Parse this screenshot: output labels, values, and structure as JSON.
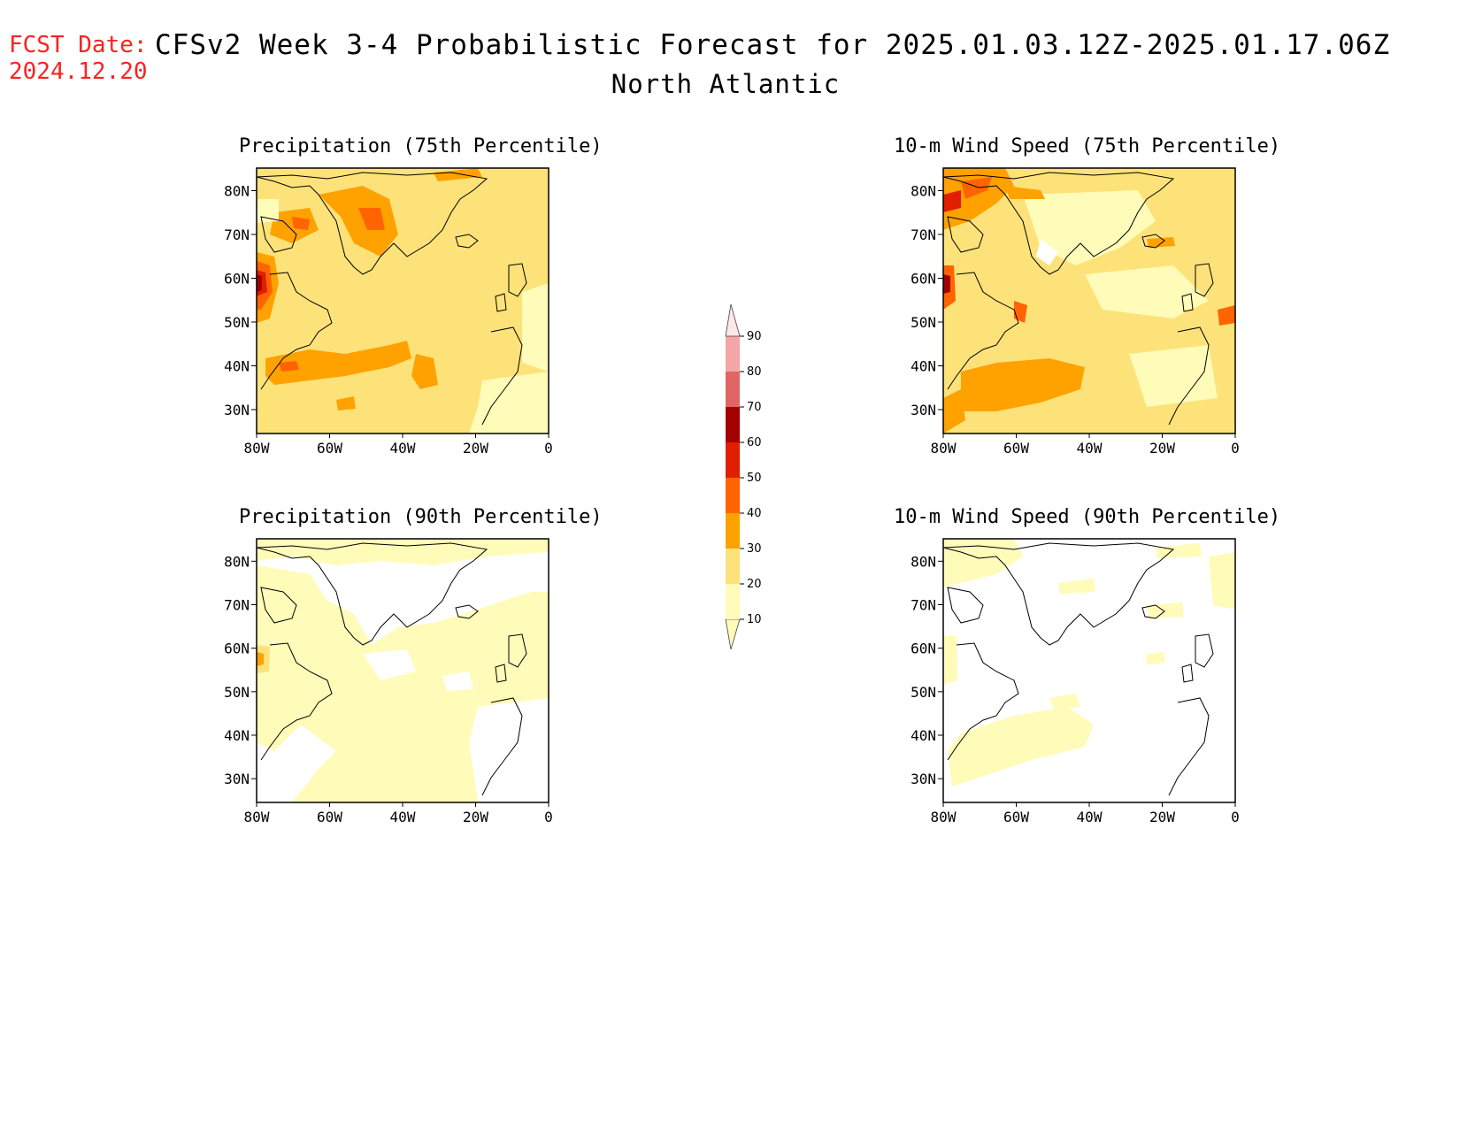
{
  "header": {
    "fcst_label": "FCST Date:",
    "fcst_date": "2024.12.20",
    "title": "CFSv2 Week 3-4 Probabilistic Forecast for 2025.01.03.12Z-2025.01.17.06Z",
    "region": "North Atlantic"
  },
  "panels": [
    {
      "id": "precip75",
      "title": "Precipitation (75th Percentile)"
    },
    {
      "id": "wind75",
      "title": "10-m Wind Speed (75th Percentile)"
    },
    {
      "id": "precip90",
      "title": "Precipitation (90th Percentile)"
    },
    {
      "id": "wind90",
      "title": "10-m Wind Speed (90th Percentile)"
    }
  ],
  "axes": {
    "lat_labels": [
      "80N",
      "70N",
      "60N",
      "50N",
      "40N",
      "30N"
    ],
    "lon_labels": [
      "80W",
      "60W",
      "40W",
      "20W",
      "0"
    ]
  },
  "colorbar": {
    "levels": [
      "10",
      "20",
      "30",
      "40",
      "50",
      "60",
      "70",
      "80",
      "90"
    ],
    "colors": [
      "#fffbb9",
      "#fde27a",
      "#ffa200",
      "#ff6400",
      "#e11e00",
      "#a50000",
      "#e06666",
      "#f4a5a5",
      "#fde7e7"
    ]
  }
}
